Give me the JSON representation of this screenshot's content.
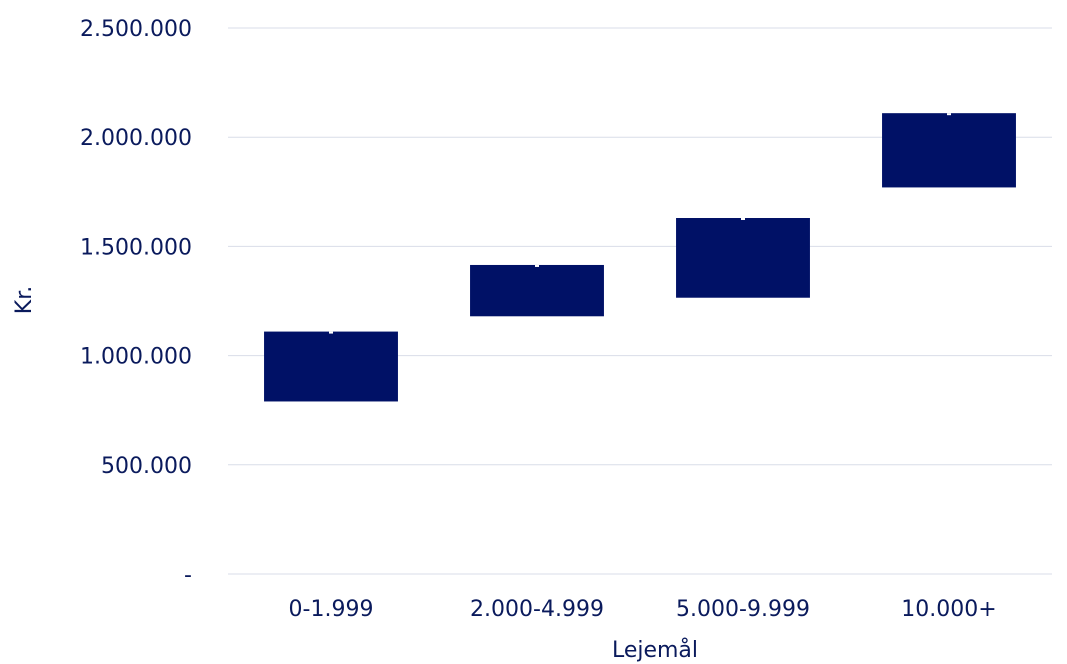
{
  "chart_data": {
    "type": "bar",
    "subtype": "floating-range",
    "categories": [
      "0-1.999",
      "2.000-4.999",
      "5.000-9.999",
      "10.000+"
    ],
    "series": [
      {
        "low": [
          790000,
          1180000,
          1265000,
          1770000
        ],
        "high": [
          1110000,
          1415000,
          1630000,
          2110000
        ]
      }
    ],
    "xlabel": "Lejemål",
    "ylabel": "Kr.",
    "ylim": [
      0,
      2500000
    ],
    "yticks": [
      0,
      500000,
      1000000,
      1500000,
      2000000,
      2500000
    ],
    "ytick_labels": [
      "-",
      "500.000",
      "1.000.000",
      "1.500.000",
      "2.000.000",
      "2.500.000"
    ],
    "grid": true,
    "colors": {
      "bar": "#001166",
      "text": "#0a1a5c",
      "grid": "#d9dde8",
      "marker": "#ffffff"
    }
  }
}
